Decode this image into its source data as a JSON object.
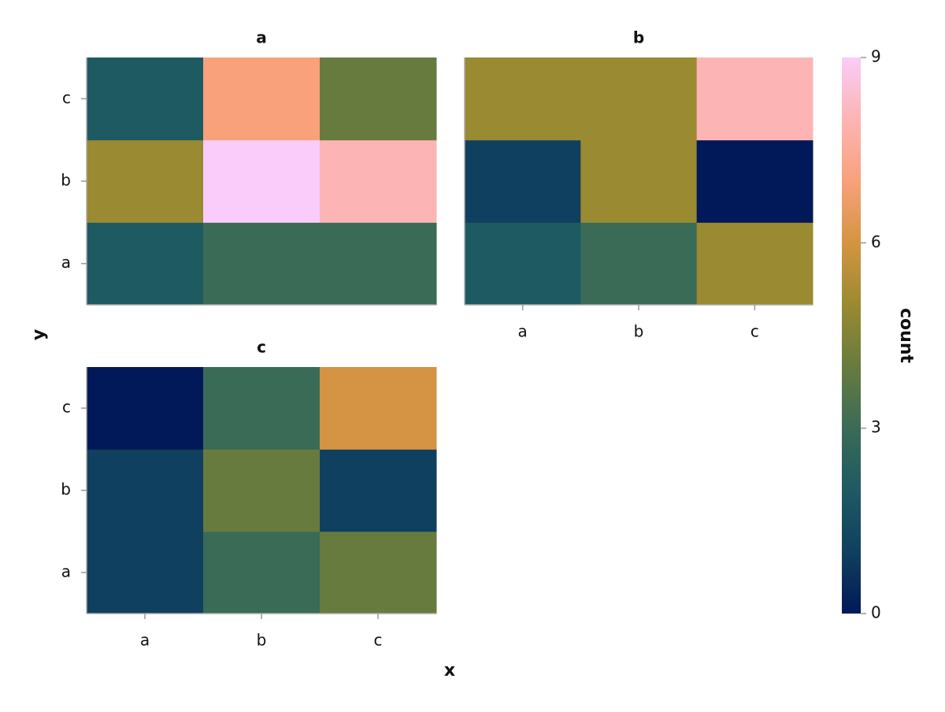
{
  "chart_data": {
    "type": "heatmap",
    "x_label": "x",
    "y_label": "y",
    "x_categories": [
      "a",
      "b",
      "c"
    ],
    "y_categories": [
      "a",
      "b",
      "c"
    ],
    "facets": [
      {
        "title": "a",
        "values": [
          [
            2,
            3,
            3
          ],
          [
            5,
            9,
            8
          ],
          [
            2,
            7,
            4
          ]
        ]
      },
      {
        "title": "b",
        "values": [
          [
            2,
            3,
            5
          ],
          [
            1,
            5,
            0
          ],
          [
            5,
            5,
            8
          ]
        ]
      },
      {
        "title": "c",
        "values": [
          [
            1,
            3,
            4
          ],
          [
            1,
            4,
            1
          ],
          [
            0,
            3,
            6
          ]
        ]
      }
    ],
    "colorbar": {
      "label": "count",
      "clim": [
        0,
        9
      ],
      "ticks": [
        0,
        3,
        6,
        9
      ],
      "colormap": [
        "#011959",
        "#10405f",
        "#1e5a62",
        "#3a6b57",
        "#687b3e",
        "#9a8a31",
        "#d49443",
        "#f8a17b",
        "#fdb4b4",
        "#f9ccf9"
      ]
    }
  }
}
